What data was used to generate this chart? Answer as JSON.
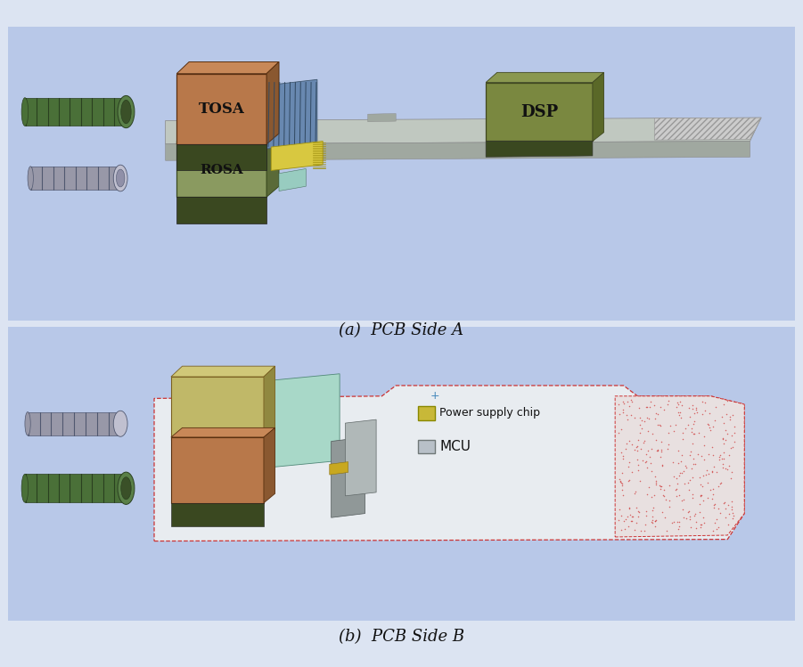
{
  "caption_a": "(a)  PCB Side A",
  "caption_b": "(b)  PCB Side B",
  "bg_color": "#b8c8e8",
  "tosa_face": "#b8784a",
  "tosa_top_face": "#c88858",
  "tosa_side_face": "#8a5830",
  "rosa_face": "#8a9a60",
  "rosa_top_face": "#9aaa70",
  "rosa_side_face": "#5a6a38",
  "rosa_dark_bottom": "#3a4820",
  "dsp_face": "#7a8840",
  "dsp_top_face": "#8a9850",
  "dsp_side_face": "#5a6828",
  "pcb_top": "#c0c8c0",
  "pcb_side": "#a0a8a0",
  "pcb_hatch": "#cccccc",
  "blue_mod": "#6888b0",
  "yellow_chip": "#d8c840",
  "yellow_dark": "#b8a820",
  "mint": "#98ccc0",
  "green_conn": "#4a7038",
  "green_conn_mid": "#5a8048",
  "gray_conn": "#9898a8",
  "gray_conn_light": "#c0c0d0",
  "tan_b_face": "#c0b868",
  "tan_b_top": "#d0c878",
  "tan_b_side": "#908840",
  "mint_b": "#a8d8c8",
  "gray_section": "#909898",
  "gray_section2": "#a8b0b0",
  "pcb_b_fill": "#e8ecf0",
  "power_chip": "#c8b838",
  "mcu_chip": "#b8c0c8",
  "dashed_red": "#cc3333",
  "plus_blue": "#4488bb",
  "text_dark": "#111111",
  "label_tosa": "TOSA",
  "label_rosa": "ROSA",
  "label_dsp": "DSP",
  "label_power": "Power supply chip",
  "label_mcu": "MCU"
}
